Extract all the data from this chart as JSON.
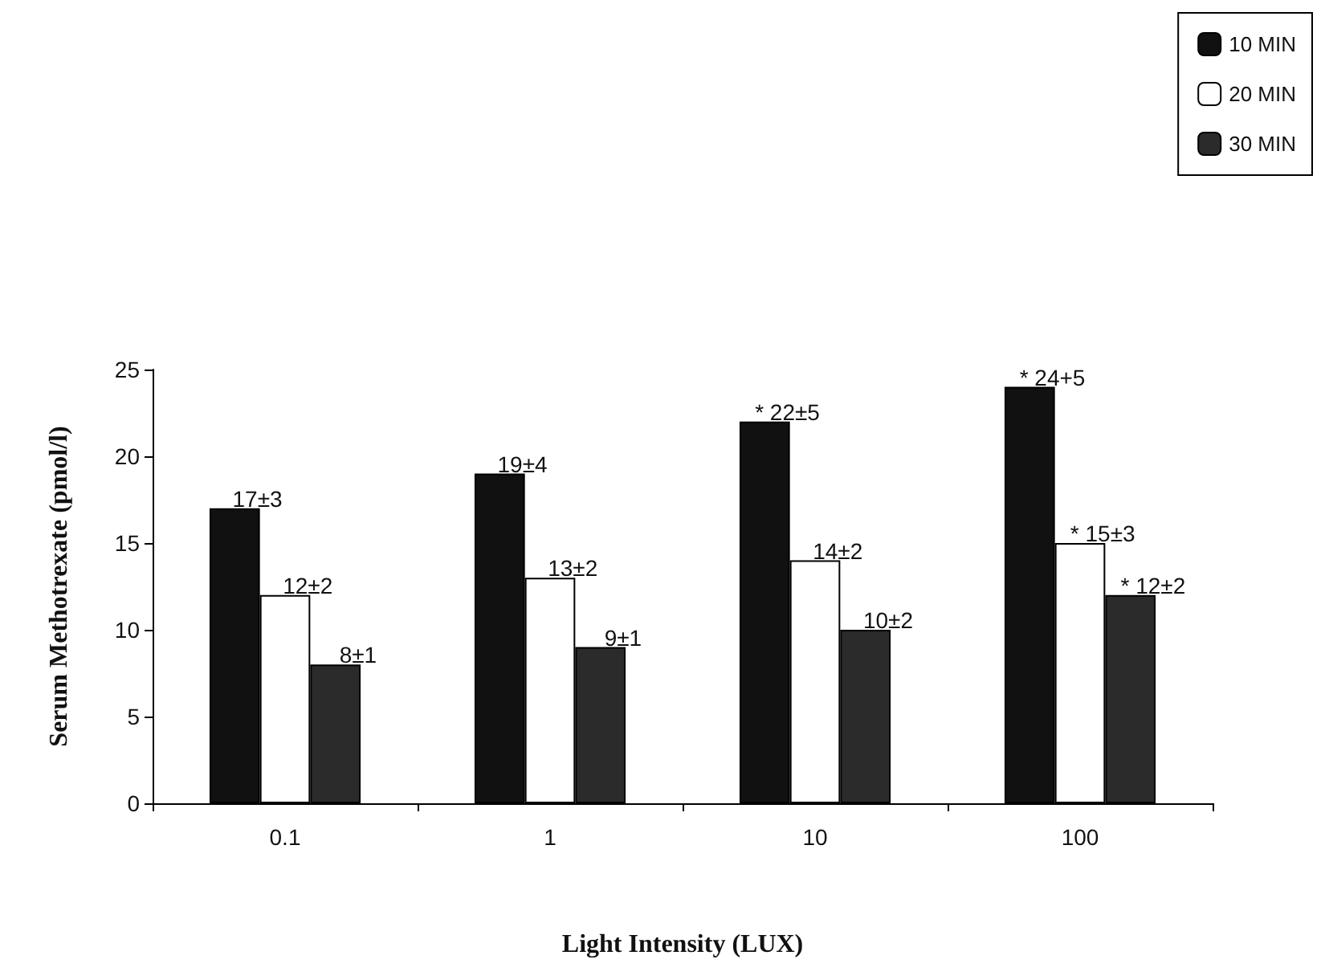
{
  "chart_data": {
    "type": "bar",
    "xlabel": "Light Intensity (LUX)",
    "ylabel": "Serum Methotrexate (pmol/l)",
    "categories": [
      "0.1",
      "1",
      "10",
      "100"
    ],
    "series": [
      {
        "name": "10 MIN",
        "color": "#111111",
        "values": [
          17,
          19,
          22,
          24
        ],
        "value_labels": [
          "17±3",
          "19±4",
          "* 22±5",
          "* 24+5"
        ]
      },
      {
        "name": "20 MIN",
        "color": "#ffffff",
        "values": [
          12,
          13,
          14,
          15
        ],
        "value_labels": [
          "12±2",
          "13±2",
          "14±2",
          "* 15±3"
        ]
      },
      {
        "name": "30 MIN",
        "color": "#2b2b2b",
        "values": [
          8,
          9,
          10,
          12
        ],
        "value_labels": [
          "8±1",
          "9±1",
          "10±2",
          "* 12±2"
        ]
      }
    ],
    "ylim": [
      0,
      25
    ],
    "yticks": [
      0,
      5,
      10,
      15,
      20,
      25
    ],
    "grid": false,
    "legend": "top right"
  }
}
